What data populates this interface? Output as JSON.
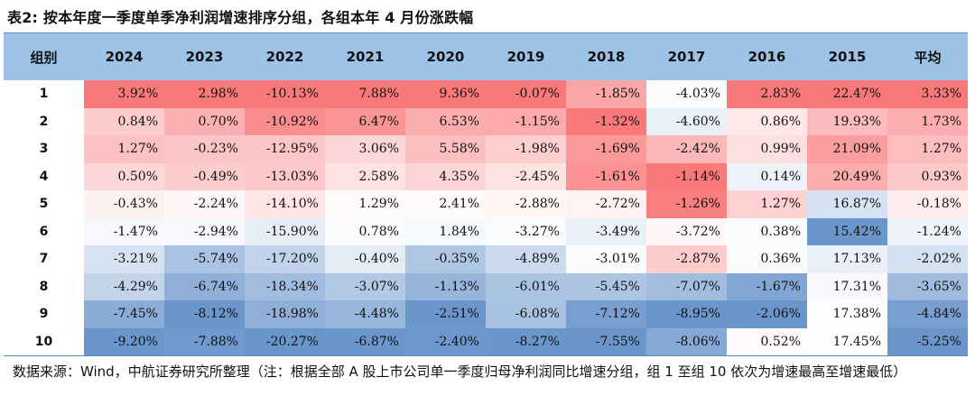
{
  "title": "表2: 按本年度一季度单季净利润增速排序分组，各组本年 4 月份涨跌幅",
  "table": {
    "headers": [
      "组别",
      "2024",
      "2023",
      "2022",
      "2021",
      "2020",
      "2019",
      "2018",
      "2017",
      "2016",
      "2015",
      "平均"
    ],
    "rows": [
      {
        "group": "1",
        "cells": [
          "3.92%",
          "2.98%",
          "-10.13%",
          "7.88%",
          "9.36%",
          "-0.07%",
          "-1.85%",
          "-4.03%",
          "2.83%",
          "22.47%",
          "3.33%"
        ]
      },
      {
        "group": "2",
        "cells": [
          "0.84%",
          "0.70%",
          "-10.92%",
          "6.47%",
          "6.53%",
          "-1.15%",
          "-1.32%",
          "-4.60%",
          "0.86%",
          "19.93%",
          "1.73%"
        ]
      },
      {
        "group": "3",
        "cells": [
          "1.27%",
          "-0.23%",
          "-12.95%",
          "3.06%",
          "5.58%",
          "-1.98%",
          "-1.69%",
          "-2.42%",
          "0.99%",
          "21.09%",
          "1.27%"
        ]
      },
      {
        "group": "4",
        "cells": [
          "0.50%",
          "-0.49%",
          "-13.03%",
          "2.58%",
          "4.35%",
          "-2.45%",
          "-1.61%",
          "-1.14%",
          "0.14%",
          "20.49%",
          "0.93%"
        ]
      },
      {
        "group": "5",
        "cells": [
          "-0.43%",
          "-2.24%",
          "-14.10%",
          "1.29%",
          "2.41%",
          "-2.88%",
          "-2.72%",
          "-1.26%",
          "1.27%",
          "16.87%",
          "-0.18%"
        ]
      },
      {
        "group": "6",
        "cells": [
          "-1.47%",
          "-2.94%",
          "-15.90%",
          "0.78%",
          "1.84%",
          "-3.27%",
          "-3.49%",
          "-3.72%",
          "0.38%",
          "15.42%",
          "-1.24%"
        ]
      },
      {
        "group": "7",
        "cells": [
          "-3.21%",
          "-5.74%",
          "-17.20%",
          "-0.40%",
          "-0.35%",
          "-4.89%",
          "-3.01%",
          "-2.87%",
          "0.36%",
          "17.13%",
          "-2.02%"
        ]
      },
      {
        "group": "8",
        "cells": [
          "-4.29%",
          "-6.74%",
          "-18.34%",
          "-3.07%",
          "-1.13%",
          "-6.01%",
          "-5.45%",
          "-7.07%",
          "-1.67%",
          "17.31%",
          "-3.65%"
        ]
      },
      {
        "group": "9",
        "cells": [
          "-7.45%",
          "-8.12%",
          "-18.98%",
          "-4.48%",
          "-2.51%",
          "-6.08%",
          "-7.12%",
          "-8.95%",
          "-2.06%",
          "17.38%",
          "-4.84%"
        ]
      },
      {
        "group": "10",
        "cells": [
          "-9.20%",
          "-7.88%",
          "-20.27%",
          "-6.87%",
          "-2.40%",
          "-8.27%",
          "-7.55%",
          "-8.06%",
          "0.52%",
          "17.45%",
          "-5.25%"
        ]
      }
    ]
  },
  "colors": {
    "header_bg": "#9dc3e6",
    "positive": "#f8696b",
    "negative": "#5a8ac6",
    "neutral": "#ffffff"
  },
  "source_note": "数据来源：Wind，中航证券研究所整理（注：根据全部 A 股上市公司单一季度归母净利润同比增速分组，组 1 至组 10 依次为增速最高至增速最低）"
}
